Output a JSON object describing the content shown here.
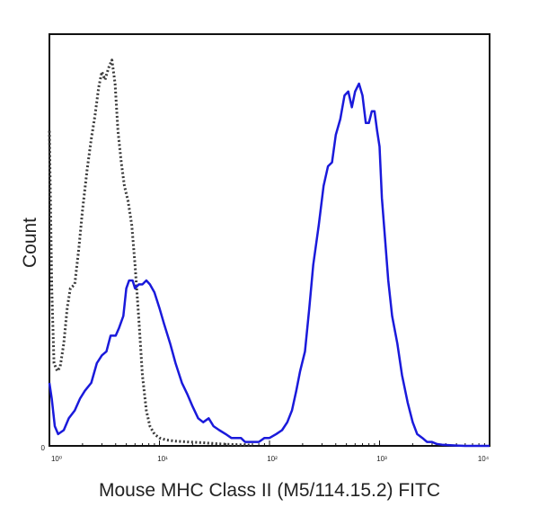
{
  "chart_data": {
    "type": "line",
    "xlabel": "Mouse MHC Class II (M5/114.15.2) FITC",
    "ylabel": "Count",
    "x_scale": "log",
    "xlim": [
      1,
      10000
    ],
    "ylim": [
      0,
      100
    ],
    "x_ticks": [
      {
        "value": 1,
        "label": "10⁰"
      },
      {
        "value": 10,
        "label": "10¹"
      },
      {
        "value": 100,
        "label": "10²"
      },
      {
        "value": 1000,
        "label": "10³"
      },
      {
        "value": 10000,
        "label": "10⁴"
      }
    ],
    "y_ticks": [
      {
        "value": 0,
        "label": "0"
      }
    ],
    "grid": false,
    "series": [
      {
        "style": "dotted",
        "color": "#3a3a3a",
        "x": [
          1.0,
          1.05,
          1.1,
          1.18,
          1.25,
          1.35,
          1.45,
          1.55,
          1.7,
          1.85,
          2.0,
          2.2,
          2.4,
          2.6,
          2.8,
          3.0,
          3.2,
          3.45,
          3.7,
          3.95,
          4.2,
          4.5,
          4.8,
          5.2,
          5.6,
          6.0,
          6.5,
          7.0,
          7.6,
          8.2,
          9.0,
          10.0,
          11.5,
          14.0,
          18.0,
          25.0,
          35.0,
          50.0,
          70.0
        ],
        "y": [
          80,
          40,
          21,
          19,
          20,
          26,
          35,
          40,
          41,
          50,
          60,
          70,
          78,
          84,
          91,
          95,
          93,
          96,
          98,
          92,
          80,
          72,
          66,
          62,
          56,
          46,
          32,
          18,
          9,
          5,
          3,
          2,
          1.5,
          1.2,
          1.0,
          0.8,
          0.5,
          0.3,
          0.2
        ]
      },
      {
        "style": "solid",
        "color": "#1a1adb",
        "x": [
          1.0,
          1.05,
          1.12,
          1.2,
          1.35,
          1.5,
          1.7,
          1.9,
          2.1,
          2.4,
          2.7,
          3.0,
          3.3,
          3.6,
          4.0,
          4.3,
          4.7,
          5.0,
          5.3,
          5.7,
          6.0,
          6.5,
          7.0,
          7.6,
          8.2,
          9.0,
          10.0,
          11.0,
          12.5,
          14.0,
          16.0,
          18.0,
          20.0,
          22.5,
          25.0,
          28.0,
          31.0,
          35.0,
          40.0,
          45.0,
          50.0,
          55.0,
          60.0,
          65.0,
          70.0,
          75.0,
          80.0,
          90.0,
          100.0,
          115.0,
          130.0,
          145.0,
          160.0,
          175.0,
          190.0,
          210.0,
          230.0,
          250.0,
          280.0,
          310.0,
          340.0,
          370.0,
          400.0,
          440.0,
          480.0,
          520.0,
          560.0,
          600.0,
          650.0,
          700.0,
          750.0,
          800.0,
          850.0,
          900.0,
          950.0,
          1000.0,
          1050.0,
          1120.0,
          1200.0,
          1300.0,
          1450.0,
          1600.0,
          1800.0,
          2000.0,
          2200.0,
          2450.0,
          2700.0,
          3000.0,
          3300.0,
          3700.0,
          4200.0,
          5000.0,
          6000.0,
          7000.0,
          10000.0
        ],
        "y": [
          16,
          12,
          5,
          3,
          4,
          7,
          9,
          12,
          14,
          16,
          21,
          23,
          24,
          28,
          28,
          30,
          33,
          40,
          42,
          42,
          40,
          41,
          41,
          42,
          41,
          39,
          35,
          31,
          26,
          21,
          16,
          13,
          10,
          7,
          6,
          7,
          5,
          4,
          3,
          2,
          2,
          2,
          1,
          1,
          1,
          1,
          1,
          2,
          2,
          3,
          4,
          6,
          9,
          14,
          19,
          24,
          35,
          46,
          56,
          66,
          71,
          72,
          79,
          83,
          89,
          90,
          86,
          90,
          92,
          89,
          82,
          82,
          85,
          85,
          80,
          76,
          63,
          53,
          42,
          33,
          26,
          18,
          11,
          6,
          3,
          2,
          1,
          1,
          0.5,
          0.3,
          0.2,
          0.1,
          0,
          0,
          0
        ]
      }
    ]
  }
}
